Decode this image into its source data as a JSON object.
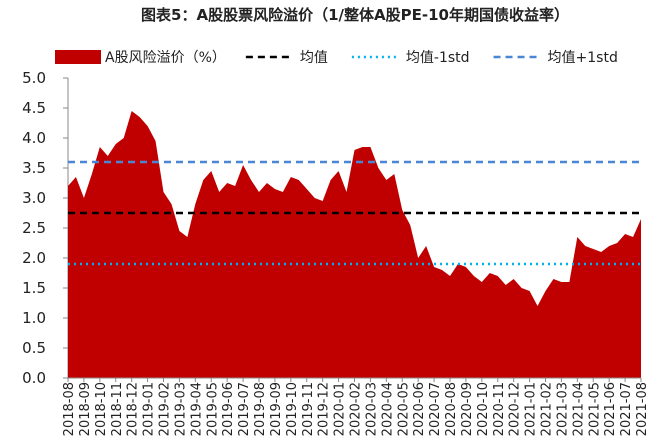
{
  "chart_data": {
    "type": "area",
    "title": "图表5：A股股票风险溢价（1/整体A股PE-10年期国债收益率）",
    "categories": [
      "2018-08",
      null,
      "2018-09",
      null,
      "2018-10",
      null,
      "2018-11",
      null,
      "2018-12",
      null,
      "2019-01",
      null,
      "2019-02",
      null,
      "2019-03",
      null,
      "2019-04",
      null,
      "2019-05",
      null,
      "2019-06",
      null,
      "2019-07",
      null,
      "2019-08",
      null,
      "2019-09",
      null,
      "2019-10",
      null,
      "2019-11",
      null,
      "2019-12",
      null,
      "2020-01",
      null,
      "2020-02",
      null,
      "2020-03",
      null,
      "2020-04",
      null,
      "2020-05",
      null,
      "2020-06",
      null,
      "2020-07",
      null,
      "2020-08",
      null,
      "2020-09",
      null,
      "2020-10",
      null,
      "2020-11",
      null,
      "2020-12",
      null,
      "2021-01",
      null,
      "2021-02",
      null,
      "2021-03",
      null,
      "2021-04",
      null,
      "2021-05",
      null,
      "2021-06",
      null,
      "2021-07",
      null,
      "2021-08"
    ],
    "series": [
      {
        "name": "A股风险溢价（%）",
        "color": "#c00000",
        "values": [
          3.2,
          3.35,
          3.0,
          3.4,
          3.85,
          3.7,
          3.9,
          4.0,
          4.45,
          4.35,
          4.2,
          3.95,
          3.1,
          2.9,
          2.45,
          2.35,
          2.9,
          3.3,
          3.45,
          3.1,
          3.25,
          3.2,
          3.55,
          3.3,
          3.1,
          3.25,
          3.15,
          3.1,
          3.35,
          3.3,
          3.15,
          3.0,
          2.95,
          3.3,
          3.45,
          3.1,
          3.8,
          3.85,
          3.85,
          3.5,
          3.3,
          3.4,
          2.8,
          2.55,
          2.0,
          2.2,
          1.85,
          1.8,
          1.7,
          1.9,
          1.85,
          1.7,
          1.6,
          1.75,
          1.7,
          1.55,
          1.65,
          1.5,
          1.45,
          1.2,
          1.45,
          1.65,
          1.6,
          1.6,
          2.35,
          2.2,
          2.15,
          2.1,
          2.2,
          2.25,
          2.4,
          2.35,
          2.65
        ]
      }
    ],
    "reference_lines": [
      {
        "name": "均值",
        "value": 2.75,
        "color": "#000000",
        "style": "dashed"
      },
      {
        "name": "均值-1std",
        "value": 1.9,
        "color": "#00b0f0",
        "style": "dotted"
      },
      {
        "name": "均值+1std",
        "value": 3.6,
        "color": "#4a86d6",
        "style": "dashed"
      }
    ],
    "ylim": [
      0,
      5
    ],
    "yticks": [
      {
        "value": 0,
        "label": "0.0"
      },
      0.5,
      {
        "value": 1,
        "label": "1.0"
      },
      1.5,
      {
        "value": 2,
        "label": "2.0"
      },
      2.5,
      {
        "value": 3,
        "label": "3.0"
      },
      3.5,
      {
        "value": 4,
        "label": "4.0"
      },
      4.5,
      {
        "value": 5,
        "label": "5.0"
      }
    ],
    "grid": false
  }
}
